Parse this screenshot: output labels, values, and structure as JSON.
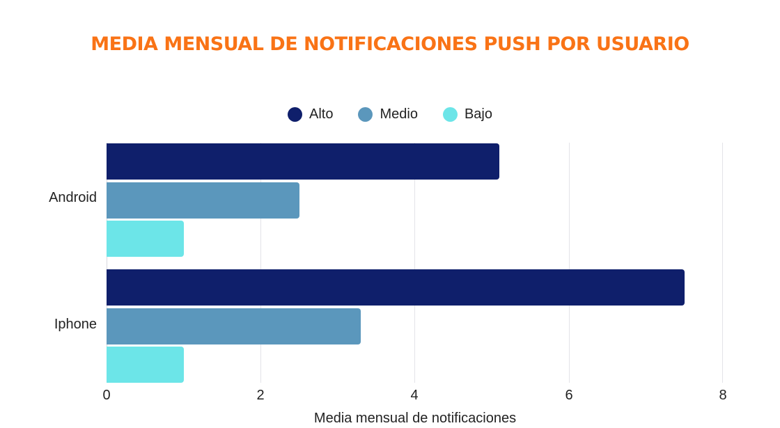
{
  "chart_data": {
    "type": "bar",
    "orientation": "horizontal",
    "title": "MEDIA MENSUAL DE NOTIFICACIONES PUSH POR USUARIO",
    "categories": [
      "Android",
      "Iphone"
    ],
    "series": [
      {
        "name": "Alto",
        "color": "#0f1f6b",
        "values": [
          5.1,
          7.5
        ]
      },
      {
        "name": "Medio",
        "color": "#5b97bc",
        "values": [
          2.5,
          3.3
        ]
      },
      {
        "name": "Bajo",
        "color": "#6ce5e8",
        "values": [
          1.0,
          1.0
        ]
      }
    ],
    "xlabel": "Media mensual de notificaciones",
    "ylabel": "",
    "xlim": [
      0,
      8
    ],
    "xticks": [
      "0",
      "2",
      "4",
      "6",
      "8"
    ],
    "grid": "vertical",
    "legend_position": "top"
  },
  "title": "MEDIA MENSUAL DE NOTIFICACIONES PUSH POR USUARIO",
  "title_color": "#f97316",
  "legend": [
    {
      "label": "Alto",
      "color": "#0f1f6b"
    },
    {
      "label": "Medio",
      "color": "#5b97bc"
    },
    {
      "label": "Bajo",
      "color": "#6ce5e8"
    }
  ],
  "categories": [
    "Android",
    "Iphone"
  ],
  "xticks": [
    "0",
    "2",
    "4",
    "6",
    "8"
  ],
  "xlabel": "Media mensual de notificaciones"
}
